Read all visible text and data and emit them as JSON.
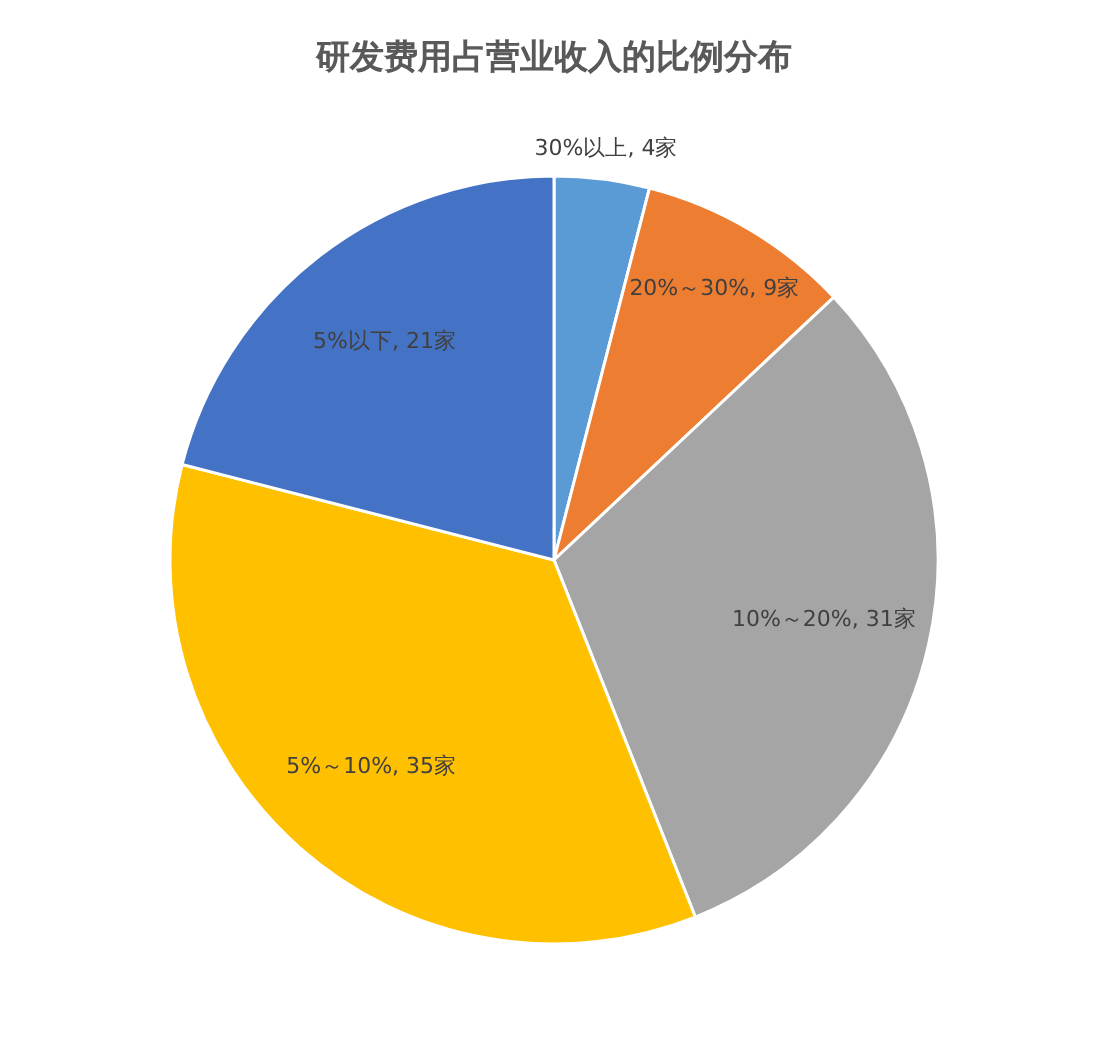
{
  "chart_data": {
    "type": "pie",
    "title": "研发费用占营业收入的比例分布",
    "categories": [
      "30%以上",
      "20%～30%",
      "10%～20%",
      "5%～10%",
      "5%以下"
    ],
    "values": [
      4,
      9,
      31,
      35,
      21
    ],
    "value_labels": [
      "4家",
      "9家",
      "31家",
      "35家",
      "21家"
    ],
    "colors": [
      "#5b9bd5",
      "#ed7d31",
      "#a5a5a5",
      "#ffc000",
      "#4472c4"
    ],
    "legend": false
  }
}
